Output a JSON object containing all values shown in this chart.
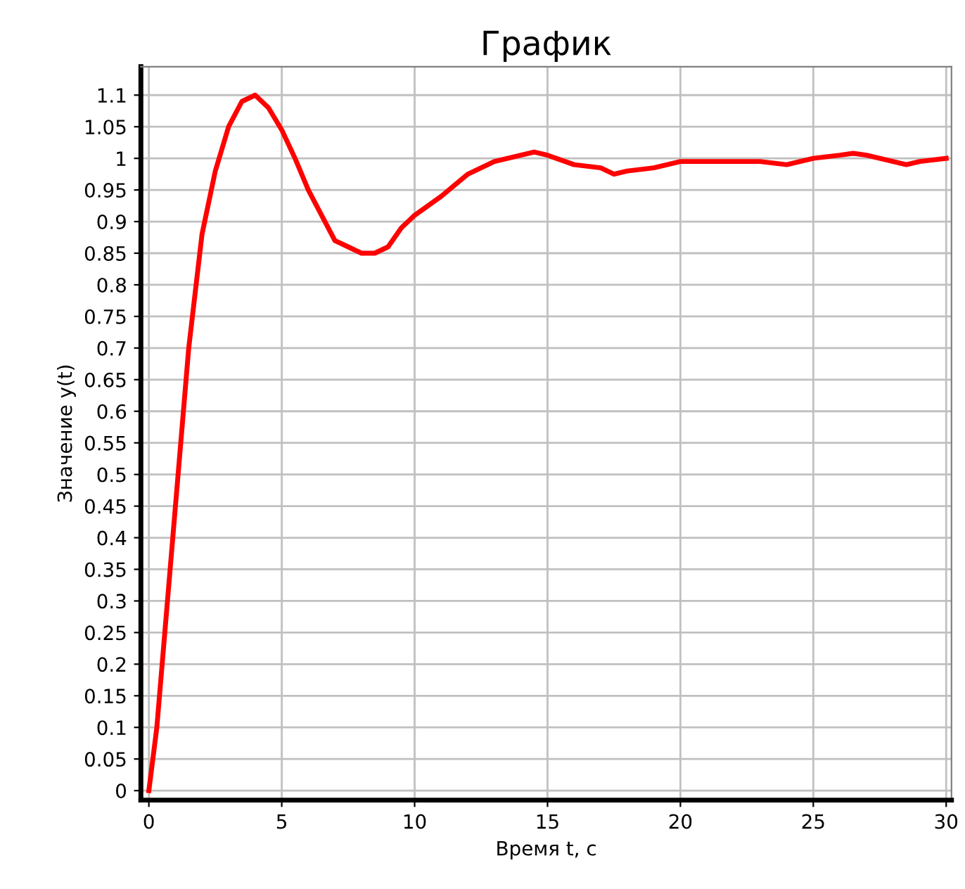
{
  "chart_data": {
    "type": "line",
    "title": "График",
    "xlabel": "Время t, с",
    "ylabel": "Значение y(t)",
    "xlim": [
      -0.3,
      30.2
    ],
    "ylim": [
      -0.015,
      1.145
    ],
    "xticks": [
      0,
      5,
      10,
      15,
      20,
      25,
      30
    ],
    "yticks": [
      0,
      0.05,
      0.1,
      0.15,
      0.2,
      0.25,
      0.3,
      0.35,
      0.4,
      0.45,
      0.5,
      0.55,
      0.6,
      0.65,
      0.7,
      0.75,
      0.8,
      0.85,
      0.9,
      0.95,
      1,
      1.05,
      1.1
    ],
    "grid": true,
    "line_style": "solid",
    "marker": "none",
    "series": [
      {
        "color": "#ff0000",
        "x": [
          0,
          0.3,
          0.6,
          1,
          1.5,
          2,
          2.5,
          3,
          3.5,
          4,
          4.5,
          5,
          5.5,
          6,
          6.5,
          7,
          7.5,
          8,
          8.5,
          9,
          9.5,
          10,
          11,
          12,
          13,
          14,
          14.5,
          15,
          16,
          17,
          17.5,
          18,
          19,
          20,
          21,
          22,
          23,
          24,
          25,
          26,
          26.5,
          27,
          28,
          28.5,
          29,
          30
        ],
        "values": [
          0,
          0.1,
          0.25,
          0.45,
          0.7,
          0.88,
          0.98,
          1.05,
          1.09,
          1.1,
          1.08,
          1.045,
          1.0,
          0.95,
          0.91,
          0.87,
          0.86,
          0.85,
          0.85,
          0.86,
          0.89,
          0.91,
          0.94,
          0.975,
          0.995,
          1.005,
          1.01,
          1.005,
          0.99,
          0.985,
          0.975,
          0.98,
          0.985,
          0.995,
          0.995,
          0.995,
          0.995,
          0.99,
          1.0,
          1.005,
          1.008,
          1.005,
          0.995,
          0.99,
          0.995,
          1.0
        ]
      }
    ]
  }
}
